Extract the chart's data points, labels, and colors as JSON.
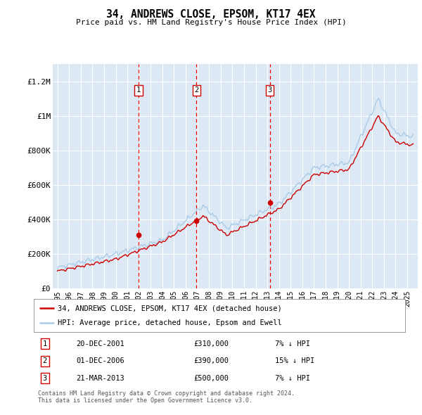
{
  "title": "34, ANDREWS CLOSE, EPSOM, KT17 4EX",
  "subtitle": "Price paid vs. HM Land Registry's House Price Index (HPI)",
  "background_color": "#ffffff",
  "plot_bg_color": "#dce9f5",
  "grid_color": "#ffffff",
  "hpi_color": "#aacbe8",
  "price_color": "#cc0000",
  "dashed_color": "#ee0000",
  "ylim": [
    0,
    1300000
  ],
  "yticks": [
    0,
    200000,
    400000,
    600000,
    800000,
    1000000,
    1200000
  ],
  "ytick_labels": [
    "£0",
    "£200K",
    "£400K",
    "£600K",
    "£800K",
    "£1M",
    "£1.2M"
  ],
  "sale_years_float": [
    2001.97,
    2006.92,
    2013.22
  ],
  "sale_prices": [
    310000,
    390000,
    500000
  ],
  "sale_labels": [
    "1",
    "2",
    "3"
  ],
  "sale_date_strs": [
    "20-DEC-2001",
    "01-DEC-2006",
    "21-MAR-2013"
  ],
  "sale_hpi_pct": [
    "7% ↓ HPI",
    "15% ↓ HPI",
    "7% ↓ HPI"
  ],
  "legend_label_red": "34, ANDREWS CLOSE, EPSOM, KT17 4EX (detached house)",
  "legend_label_blue": "HPI: Average price, detached house, Epsom and Ewell",
  "footnote": "Contains HM Land Registry data © Crown copyright and database right 2024.\nThis data is licensed under the Open Government Licence v3.0."
}
